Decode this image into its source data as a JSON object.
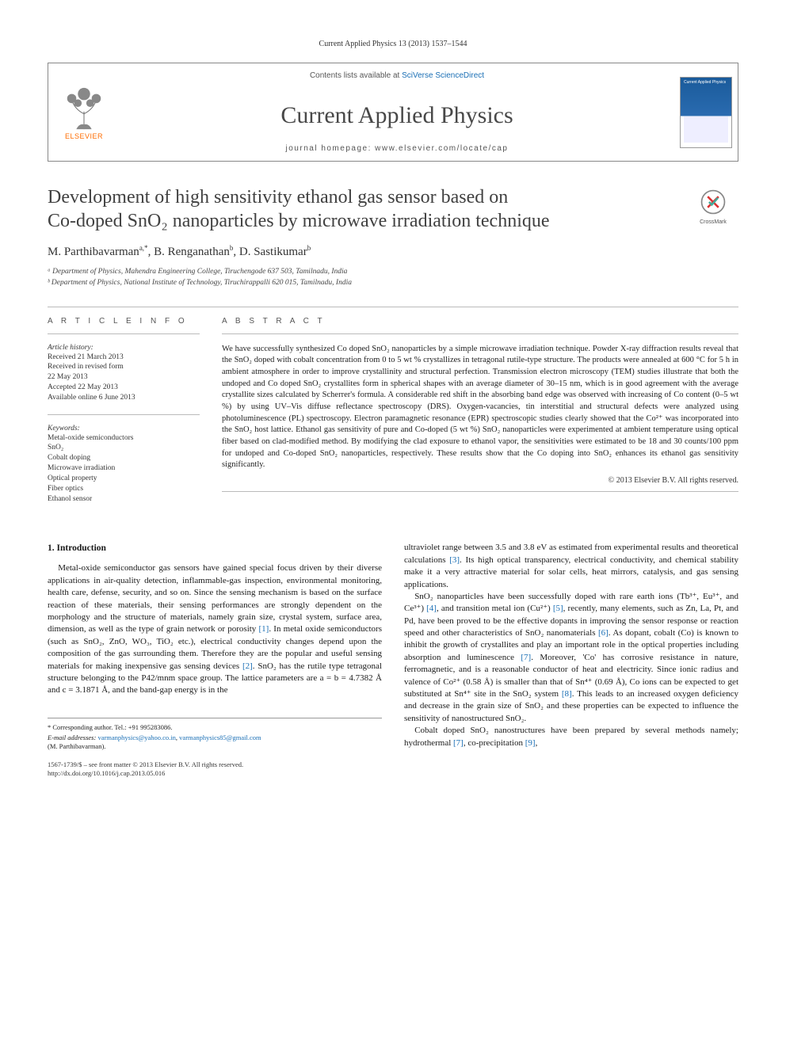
{
  "journal_ref": "Current Applied Physics 13 (2013) 1537–1544",
  "header": {
    "contents_prefix": "Contents lists available at ",
    "contents_link": "SciVerse ScienceDirect",
    "journal_title": "Current Applied Physics",
    "homepage_label": "journal homepage: www.elsevier.com/locate/cap",
    "elsevier_label": "ELSEVIER",
    "cover_top": "Current Applied Physics"
  },
  "crossmark_label": "CrossMark",
  "title_line1": "Development of high sensitivity ethanol gas sensor based on",
  "title_line2": "Co-doped SnO₂ nanoparticles by microwave irradiation technique",
  "authors_html": "M. Parthibavarman",
  "author1_sup": "a,*",
  "author2": ", B. Renganathan",
  "author2_sup": "b",
  "author3": ", D. Sastikumar",
  "author3_sup": "b",
  "affiliations": {
    "a": "ᵃ Department of Physics, Mahendra Engineering College, Tiruchengode 637 503, Tamilnadu, India",
    "b": "ᵇ Department of Physics, National Institute of Technology, Tiruchirappalli 620 015, Tamilnadu, India"
  },
  "section_heads": {
    "article_info": "A R T I C L E   I N F O",
    "abstract": "A B S T R A C T"
  },
  "history": {
    "label": "Article history:",
    "l1": "Received 21 March 2013",
    "l2": "Received in revised form",
    "l3": "22 May 2013",
    "l4": "Accepted 22 May 2013",
    "l5": "Available online 6 June 2013"
  },
  "keywords": {
    "label": "Keywords:",
    "k1": "Metal-oxide semiconductors",
    "k2": "SnO₂",
    "k3": "Cobalt doping",
    "k4": "Microwave irradiation",
    "k5": "Optical property",
    "k6": "Fiber optics",
    "k7": "Ethanol sensor"
  },
  "abstract": "We have successfully synthesized Co doped SnO₂ nanoparticles by a simple microwave irradiation technique. Powder X-ray diffraction results reveal that the SnO₂ doped with cobalt concentration from 0 to 5 wt % crystallizes in tetragonal rutile-type structure. The products were annealed at 600 °C for 5 h in ambient atmosphere in order to improve crystallinity and structural perfection. Transmission electron microscopy (TEM) studies illustrate that both the undoped and Co doped SnO₂ crystallites form in spherical shapes with an average diameter of 30–15 nm, which is in good agreement with the average crystallite sizes calculated by Scherrer's formula. A considerable red shift in the absorbing band edge was observed with increasing of Co content (0–5 wt %) by using UV–Vis diffuse reflectance spectroscopy (DRS). Oxygen-vacancies, tin interstitial and structural defects were analyzed using photoluminescence (PL) spectroscopy. Electron paramagnetic resonance (EPR) spectroscopic studies clearly showed that the Co²⁺ was incorporated into the SnO₂ host lattice. Ethanol gas sensitivity of pure and Co-doped (5 wt %) SnO₂ nanoparticles were experimented at ambient temperature using optical fiber based on clad-modified method. By modifying the clad exposure to ethanol vapor, the sensitivities were estimated to be 18 and 30 counts/100 ppm for undoped and Co-doped SnO₂ nanoparticles, respectively. These results show that the Co doping into SnO₂ enhances its ethanol gas sensitivity significantly.",
  "copyright": "© 2013 Elsevier B.V. All rights reserved.",
  "intro_head": "1. Introduction",
  "intro_left": "Metal-oxide semiconductor gas sensors have gained special focus driven by their diverse applications in air-quality detection, inflammable-gas inspection, environmental monitoring, health care, defense, security, and so on. Since the sensing mechanism is based on the surface reaction of these materials, their sensing performances are strongly dependent on the morphology and the structure of materials, namely grain size, crystal system, surface area, dimension, as well as the type of grain network or porosity [1]. In metal oxide semiconductors (such as SnO₂, ZnO, WO₃, TiO₂ etc.), electrical conductivity changes depend upon the composition of the gas surrounding them. Therefore they are the popular and useful sensing materials for making inexpensive gas sensing devices [2]. SnO₂ has the rutile type tetragonal structure belonging to the P42/mnm space group. The lattice parameters are a = b = 4.7382 Å and c = 3.1871 Å, and the band-gap energy is in the",
  "intro_right_p1": "ultraviolet range between 3.5 and 3.8 eV as estimated from experimental results and theoretical calculations [3]. Its high optical transparency, electrical conductivity, and chemical stability make it a very attractive material for solar cells, heat mirrors, catalysis, and gas sensing applications.",
  "intro_right_p2": "SnO₂ nanoparticles have been successfully doped with rare earth ions (Tb³⁺, Eu³⁺, and Ce³⁺) [4], and transition metal ion (Cu²⁺) [5], recently, many elements, such as Zn, La, Pt, and Pd, have been proved to be the effective dopants in improving the sensor response or reaction speed and other characteristics of SnO₂ nanomaterials [6]. As dopant, cobalt (Co) is known to inhibit the growth of crystallites and play an important role in the optical properties including absorption and luminescence [7]. Moreover, 'Co' has corrosive resistance in nature, ferromagnetic, and is a reasonable conductor of heat and electricity. Since ionic radius and valence of Co²⁺ (0.58 Å) is smaller than that of Sn⁴⁺ (0.69 Å), Co ions can be expected to get substituted at Sn⁴⁺ site in the SnO₂ system [8]. This leads to an increased oxygen deficiency and decrease in the grain size of SnO₂ and these properties can be expected to influence the sensitivity of nanostructured SnO₂.",
  "intro_right_p3": "Cobalt doped SnO₂ nanostructures have been prepared by several methods namely; hydrothermal [7], co-precipitation [9],",
  "footer": {
    "corr": "* Corresponding author. Tel.: +91 995283086.",
    "email_label": "E-mail addresses:",
    "email1": "varmanphysics@yahoo.co.in",
    "email2": "varmanphysics85@gmail.com",
    "email_tail": "(M. Parthibavarman).",
    "issn": "1567-1739/$ – see front matter © 2013 Elsevier B.V. All rights reserved.",
    "doi": "http://dx.doi.org/10.1016/j.cap.2013.05.016"
  },
  "colors": {
    "link": "#1a6fb5",
    "elsevier": "#ff6c00",
    "text": "#1a1a1a",
    "rule": "#bbbbbb"
  }
}
